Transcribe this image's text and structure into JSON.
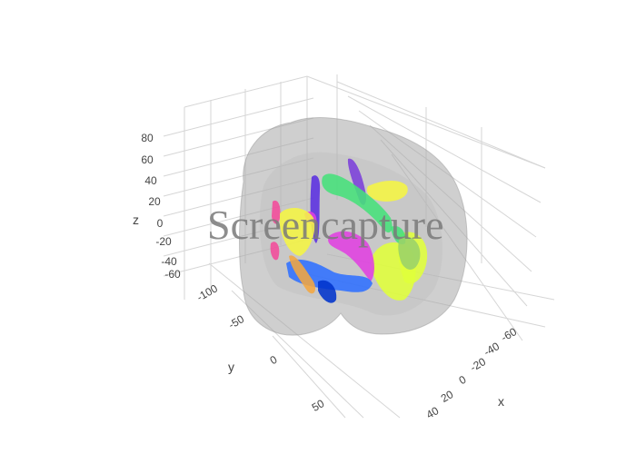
{
  "chart_data": {
    "type": "3d-mesh",
    "title": "",
    "axes": {
      "x": {
        "label": "x",
        "ticks": [
          "-60",
          "-40",
          "-20",
          "0",
          "20",
          "40"
        ]
      },
      "y": {
        "label": "y",
        "ticks": [
          "-100",
          "-50",
          "0",
          "50"
        ]
      },
      "z": {
        "label": "z",
        "ticks": [
          "80",
          "60",
          "40",
          "20",
          "0",
          "-20",
          "-40",
          "-60"
        ]
      }
    },
    "grid": true,
    "legend": "none",
    "meshes": [
      {
        "name": "brain surface",
        "color": "#a8a8a8",
        "opacity": 0.55
      },
      {
        "name": "tract",
        "color": "#f5f542"
      },
      {
        "name": "tract",
        "color": "#e0ff3a"
      },
      {
        "name": "tract",
        "color": "#5a2fe0"
      },
      {
        "name": "tract",
        "color": "#7b3fd9"
      },
      {
        "name": "tract",
        "color": "#45e07a"
      },
      {
        "name": "tract",
        "color": "#e040e0"
      },
      {
        "name": "tract",
        "color": "#2f6fff"
      },
      {
        "name": "tract",
        "color": "#0033cc"
      },
      {
        "name": "tract",
        "color": "#f24a9a"
      },
      {
        "name": "tract",
        "color": "#f2a640"
      },
      {
        "name": "tract",
        "color": "#9ad26a"
      }
    ]
  },
  "watermark": "Screencapture"
}
